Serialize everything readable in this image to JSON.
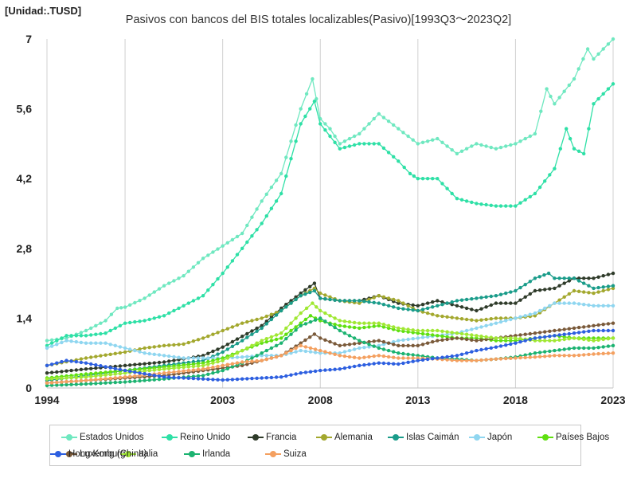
{
  "unit_label": "[Unidad:.TUSD]",
  "chart_data": {
    "type": "line",
    "title": "Pasivos con bancos del BIS totales localizables(Pasivo)[1993Q3～2023Q2]",
    "xlabel": "",
    "ylabel": "",
    "xlim": [
      1994,
      2023
    ],
    "ylim": [
      0,
      7
    ],
    "x_ticks": [
      1994,
      1998,
      2003,
      2008,
      2013,
      2018,
      2023
    ],
    "y_ticks": [
      {
        "value": 0,
        "label": "0"
      },
      {
        "value": 1.4,
        "label": "1,4"
      },
      {
        "value": 2.8,
        "label": "2,8"
      },
      {
        "value": 4.2,
        "label": "4,2"
      },
      {
        "value": 5.6,
        "label": "5,6"
      },
      {
        "value": 7,
        "label": "7"
      }
    ],
    "grid": "vertical",
    "legend_position": "bottom",
    "series": [
      {
        "name": "Estados Unidos",
        "color": "#6fe8c0",
        "x": [
          1994,
          1995,
          1996,
          1997,
          1997.6,
          1998,
          1999,
          2000,
          2001,
          2002,
          2003,
          2004,
          2005,
          2006,
          2007,
          2007.6,
          2008,
          2008.5,
          2009,
          2010,
          2011,
          2012,
          2013,
          2014,
          2015,
          2016,
          2017,
          2018,
          2019,
          2019.6,
          2020,
          2021,
          2021.7,
          2022,
          2023
        ],
        "values": [
          0.95,
          1.0,
          1.15,
          1.35,
          1.6,
          1.62,
          1.8,
          2.05,
          2.25,
          2.6,
          2.85,
          3.1,
          3.75,
          4.3,
          5.6,
          6.2,
          5.4,
          5.2,
          4.9,
          5.1,
          5.5,
          5.2,
          4.9,
          5.0,
          4.7,
          4.9,
          4.8,
          4.9,
          5.1,
          6.0,
          5.7,
          6.2,
          6.8,
          6.6,
          7.0
        ]
      },
      {
        "name": "Reino Unido",
        "color": "#2ee0a6",
        "x": [
          1994,
          1995,
          1996,
          1997,
          1998,
          1999,
          2000,
          2001,
          2002,
          2003,
          2004,
          2005,
          2006,
          2007,
          2007.7,
          2008,
          2009,
          2010,
          2011,
          2012,
          2012.6,
          2013,
          2014,
          2015,
          2016,
          2017,
          2018,
          2019,
          2020,
          2020.6,
          2021,
          2021.5,
          2022,
          2023
        ],
        "values": [
          0.85,
          1.05,
          1.05,
          1.1,
          1.3,
          1.35,
          1.45,
          1.65,
          1.85,
          2.3,
          2.8,
          3.3,
          3.9,
          5.3,
          5.75,
          5.3,
          4.8,
          4.9,
          4.9,
          4.55,
          4.3,
          4.2,
          4.2,
          3.8,
          3.7,
          3.65,
          3.65,
          3.9,
          4.4,
          5.2,
          4.8,
          4.7,
          5.7,
          6.1
        ]
      },
      {
        "name": "Francia",
        "color": "#2f3b2a",
        "x": [
          1994,
          1996,
          1998,
          2000,
          2002,
          2003,
          2005,
          2006,
          2007,
          2007.7,
          2008,
          2009,
          2010,
          2011,
          2012,
          2013,
          2014,
          2015,
          2016,
          2017,
          2018,
          2019,
          2020,
          2021,
          2022,
          2023
        ],
        "values": [
          0.3,
          0.38,
          0.45,
          0.52,
          0.65,
          0.82,
          1.25,
          1.6,
          1.9,
          2.1,
          1.8,
          1.75,
          1.75,
          1.85,
          1.7,
          1.65,
          1.75,
          1.65,
          1.55,
          1.7,
          1.7,
          1.95,
          2.0,
          2.2,
          2.2,
          2.3
        ]
      },
      {
        "name": "Alemania",
        "color": "#a3a82e",
        "x": [
          1994,
          1996,
          1998,
          1999,
          2000,
          2001,
          2002,
          2003,
          2004,
          2005,
          2006,
          2007,
          2007.7,
          2008,
          2009,
          2010,
          2011,
          2012,
          2013,
          2014,
          2015,
          2016,
          2017,
          2018,
          2019,
          2020,
          2021,
          2022,
          2023
        ],
        "values": [
          0.45,
          0.6,
          0.72,
          0.8,
          0.85,
          0.88,
          1.0,
          1.15,
          1.3,
          1.4,
          1.55,
          1.85,
          2.0,
          1.9,
          1.75,
          1.7,
          1.85,
          1.75,
          1.55,
          1.45,
          1.4,
          1.35,
          1.4,
          1.4,
          1.45,
          1.7,
          1.95,
          1.9,
          2.0
        ]
      },
      {
        "name": "Islas Caimán",
        "color": "#1a9c8a",
        "x": [
          1994,
          1996,
          1998,
          2000,
          2002,
          2003,
          2004,
          2005,
          2006,
          2007,
          2007.7,
          2008,
          2009,
          2010,
          2011,
          2012,
          2013,
          2014,
          2015,
          2016,
          2017,
          2018,
          2019,
          2019.7,
          2020,
          2021,
          2022,
          2023
        ],
        "values": [
          0.15,
          0.25,
          0.35,
          0.45,
          0.55,
          0.72,
          0.95,
          1.2,
          1.55,
          1.85,
          1.95,
          1.8,
          1.75,
          1.75,
          1.7,
          1.6,
          1.55,
          1.65,
          1.75,
          1.8,
          1.85,
          1.95,
          2.2,
          2.3,
          2.2,
          2.2,
          2.0,
          2.05
        ]
      },
      {
        "name": "Japón",
        "color": "#8fd6f0",
        "x": [
          1994,
          1995,
          1996,
          1997,
          1998,
          1999,
          2000,
          2001,
          2002,
          2003,
          2004,
          2005,
          2006,
          2007,
          2008,
          2009,
          2010,
          2011,
          2012,
          2013,
          2014,
          2015,
          2016,
          2017,
          2018,
          2019,
          2020,
          2021,
          2022,
          2023
        ],
        "values": [
          0.8,
          0.95,
          0.9,
          0.9,
          0.8,
          0.7,
          0.65,
          0.6,
          0.6,
          0.6,
          0.62,
          0.65,
          0.65,
          0.75,
          0.7,
          0.7,
          0.8,
          0.85,
          0.95,
          1.0,
          1.05,
          1.1,
          1.2,
          1.3,
          1.4,
          1.5,
          1.7,
          1.7,
          1.65,
          1.65
        ]
      },
      {
        "name": "Países Bajos",
        "color": "#5fe010",
        "x": [
          1994,
          1996,
          1998,
          2000,
          2002,
          2003,
          2004,
          2005,
          2006,
          2007,
          2007.5,
          2008,
          2009,
          2010,
          2011,
          2012,
          2013,
          2014,
          2015,
          2016,
          2017,
          2018,
          2019,
          2020,
          2021,
          2022,
          2023
        ],
        "values": [
          0.2,
          0.28,
          0.35,
          0.42,
          0.5,
          0.6,
          0.75,
          0.9,
          1.0,
          1.3,
          1.45,
          1.35,
          1.25,
          1.2,
          1.25,
          1.15,
          1.1,
          1.05,
          1.0,
          1.0,
          0.95,
          0.95,
          1.0,
          1.05,
          1.0,
          1.0,
          1.0
        ]
      },
      {
        "name": "Luxemburgo",
        "color": "#7a5a3a",
        "x": [
          1994,
          1996,
          1998,
          2000,
          2002,
          2004,
          2006,
          2007,
          2007.7,
          2008,
          2009,
          2010,
          2011,
          2012,
          2013,
          2014,
          2015,
          2016,
          2017,
          2018,
          2019,
          2020,
          2021,
          2022,
          2023
        ],
        "values": [
          0.1,
          0.15,
          0.2,
          0.25,
          0.35,
          0.45,
          0.65,
          0.9,
          1.08,
          1.0,
          0.85,
          0.9,
          0.95,
          0.85,
          0.85,
          0.95,
          1.0,
          0.95,
          1.0,
          1.05,
          1.1,
          1.15,
          1.2,
          1.25,
          1.3
        ]
      },
      {
        "name": "Italia",
        "color": "#a0e833",
        "x": [
          1994,
          1996,
          1998,
          2000,
          2002,
          2003,
          2004,
          2005,
          2006,
          2007,
          2007.6,
          2008,
          2009,
          2010,
          2011,
          2012,
          2013,
          2014,
          2015,
          2016,
          2017,
          2018,
          2019,
          2020,
          2021,
          2022,
          2023
        ],
        "values": [
          0.18,
          0.22,
          0.3,
          0.38,
          0.45,
          0.55,
          0.75,
          0.95,
          1.1,
          1.5,
          1.7,
          1.55,
          1.35,
          1.3,
          1.3,
          1.2,
          1.15,
          1.15,
          1.1,
          1.05,
          1.0,
          1.0,
          0.95,
          0.95,
          1.0,
          0.95,
          1.0
        ]
      },
      {
        "name": "Irlanda",
        "color": "#1cb371",
        "x": [
          1994,
          1996,
          1998,
          2000,
          2002,
          2003,
          2004,
          2005,
          2006,
          2007,
          2008,
          2009,
          2010,
          2011,
          2012,
          2013,
          2014,
          2015,
          2016,
          2017,
          2018,
          2019,
          2020,
          2021,
          2022,
          2023
        ],
        "values": [
          0.05,
          0.08,
          0.12,
          0.18,
          0.25,
          0.35,
          0.5,
          0.7,
          0.9,
          1.25,
          1.4,
          1.15,
          0.95,
          0.8,
          0.7,
          0.65,
          0.6,
          0.58,
          0.55,
          0.58,
          0.62,
          0.7,
          0.75,
          0.8,
          0.8,
          0.85
        ]
      },
      {
        "name": "Suiza",
        "color": "#f4a060",
        "x": [
          1994,
          1996,
          1998,
          2000,
          2002,
          2004,
          2005,
          2006,
          2007,
          2008,
          2009,
          2010,
          2011,
          2012,
          2013,
          2014,
          2015,
          2016,
          2017,
          2018,
          2019,
          2020,
          2021,
          2022,
          2023
        ],
        "values": [
          0.1,
          0.15,
          0.22,
          0.3,
          0.38,
          0.52,
          0.55,
          0.65,
          0.85,
          0.75,
          0.65,
          0.6,
          0.65,
          0.6,
          0.6,
          0.58,
          0.55,
          0.55,
          0.58,
          0.6,
          0.62,
          0.65,
          0.65,
          0.68,
          0.7
        ]
      },
      {
        "name": "Hong Kong (China)",
        "color": "#2d5fe0",
        "x": [
          1994,
          1995,
          1996,
          1998,
          2000,
          2002,
          2003,
          2004,
          2005,
          2006,
          2007,
          2008,
          2009,
          2010,
          2011,
          2012,
          2013,
          2014,
          2015,
          2016,
          2017,
          2018,
          2019,
          2020,
          2021,
          2022,
          2023
        ],
        "values": [
          0.45,
          0.55,
          0.5,
          0.35,
          0.22,
          0.18,
          0.16,
          0.18,
          0.2,
          0.22,
          0.3,
          0.35,
          0.38,
          0.45,
          0.5,
          0.48,
          0.55,
          0.6,
          0.65,
          0.75,
          0.82,
          0.9,
          1.0,
          1.05,
          1.1,
          1.15,
          1.15
        ]
      }
    ]
  }
}
